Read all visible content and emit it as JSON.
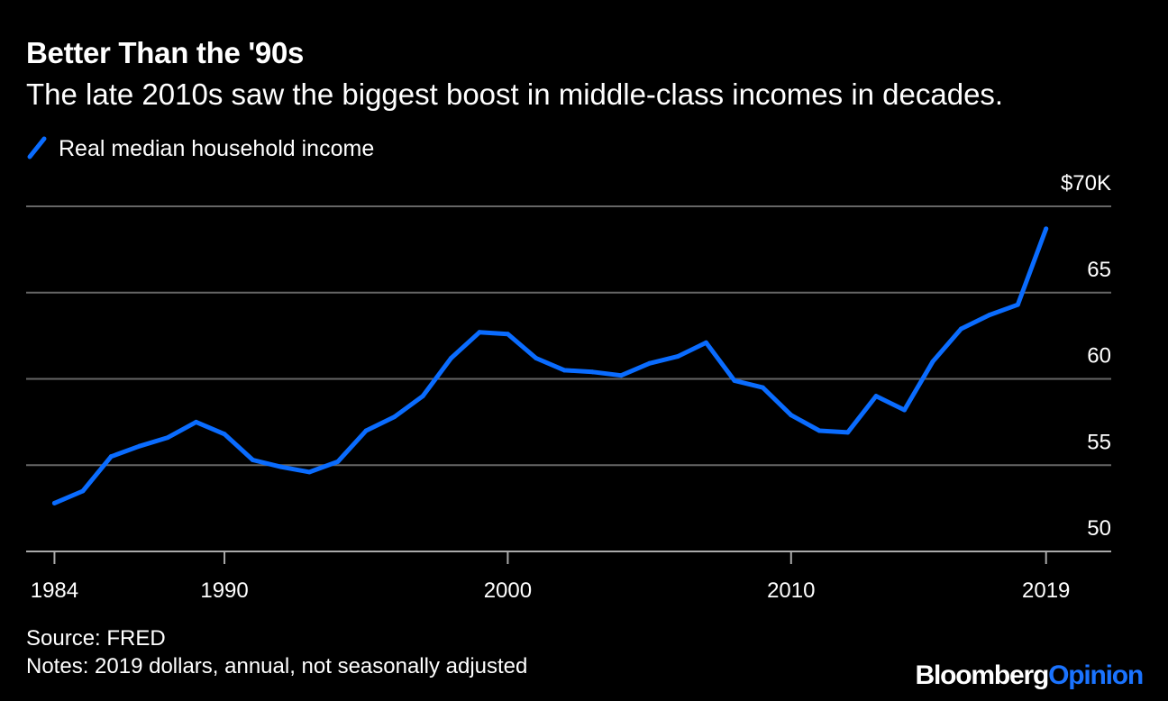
{
  "header": {
    "title": "Better Than the '90s",
    "subtitle": "The late 2010s saw the biggest boost in middle-class incomes in decades."
  },
  "colors": {
    "background": "#000000",
    "line": "#0a6cff",
    "grid": "#666666",
    "text": "#ffffff",
    "brand_accent": "#1a73ff"
  },
  "chart_data": {
    "type": "line",
    "title": "Better Than the '90s",
    "subtitle": "The late 2010s saw the biggest boost in middle-class incomes in decades.",
    "xlabel": "",
    "ylabel": "",
    "x_ticks": [
      1984,
      1990,
      2000,
      2010,
      2019
    ],
    "y_ticks": [
      {
        "value": 50,
        "label": "50"
      },
      {
        "value": 55,
        "label": "55"
      },
      {
        "value": 60,
        "label": "60"
      },
      {
        "value": 65,
        "label": "65"
      },
      {
        "value": 70,
        "label": "$70K"
      }
    ],
    "xlim": [
      1983,
      2021.3
    ],
    "ylim": [
      50,
      70
    ],
    "grid": true,
    "legend_position": "top-left",
    "y_axis_position": "right",
    "series": [
      {
        "name": "Real median household income",
        "color": "#0a6cff",
        "x": [
          1984,
          1985,
          1986,
          1987,
          1988,
          1989,
          1990,
          1991,
          1992,
          1993,
          1994,
          1995,
          1996,
          1997,
          1998,
          1999,
          2000,
          2001,
          2002,
          2003,
          2004,
          2005,
          2006,
          2007,
          2008,
          2009,
          2010,
          2011,
          2012,
          2013,
          2014,
          2015,
          2016,
          2017,
          2018,
          2019
        ],
        "values": [
          52.8,
          53.5,
          55.5,
          56.1,
          56.6,
          57.5,
          56.8,
          55.3,
          54.9,
          54.6,
          55.2,
          57.0,
          57.8,
          59.0,
          61.2,
          62.7,
          62.6,
          61.2,
          60.5,
          60.4,
          60.2,
          60.9,
          61.3,
          62.1,
          59.9,
          59.5,
          57.9,
          57.0,
          56.9,
          59.0,
          58.2,
          61.0,
          62.9,
          63.7,
          64.3,
          68.7
        ]
      }
    ]
  },
  "footer": {
    "source": "Source: FRED",
    "notes": "Notes: 2019 dollars, annual, not seasonally adjusted"
  },
  "brand": {
    "part1": "Bloomberg",
    "part2": "Opinion"
  }
}
